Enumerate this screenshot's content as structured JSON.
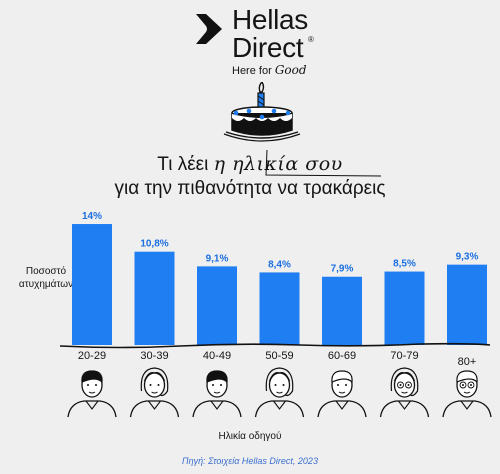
{
  "brand": {
    "line1": "Hellas",
    "line2": "Direct",
    "registered": "®",
    "tagline_prefix": "Here for",
    "tagline_script": "Good"
  },
  "title": {
    "line1_prefix": "Τι λέει",
    "line1_handwritten": "η ηλικία σου",
    "line2": "για την πιθανότητα να τρακάρεις"
  },
  "colors": {
    "bar": "#1f7ef2",
    "background": "#efefef",
    "label": "#1b6fe0",
    "source": "#3a6ecf"
  },
  "chart_data": {
    "type": "bar",
    "categories": [
      "20-29",
      "30-39",
      "40-49",
      "50-59",
      "60-69",
      "70-79",
      "80+"
    ],
    "values": [
      14,
      10.8,
      9.1,
      8.4,
      7.9,
      8.5,
      9.3
    ],
    "data_labels": [
      "14%",
      "10,8%",
      "9,1%",
      "8,4%",
      "7,9%",
      "8,5%",
      "9,3%"
    ],
    "ylabel": "Ποσοστό ατυχημάτων",
    "xlabel": "Ηλικία οδηγού",
    "ylim": [
      0,
      16
    ],
    "grid": false,
    "icons": [
      "young-man-icon",
      "woman-icon",
      "middle-aged-man-icon",
      "woman-icon",
      "older-man-icon",
      "elderly-woman-icon",
      "elderly-man-icon"
    ]
  },
  "source": "Πηγή: Στοιχεία Hellas Direct, 2023"
}
